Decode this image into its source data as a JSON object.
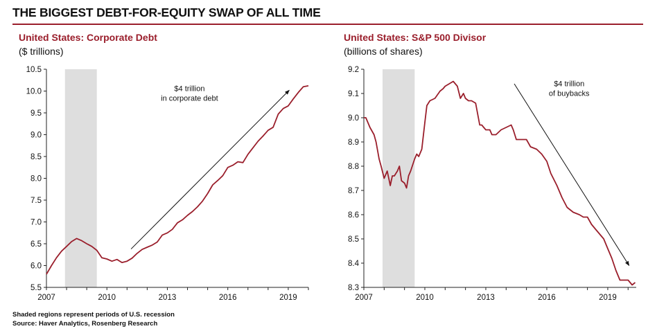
{
  "header": {
    "title": "THE BIGGEST DEBT-FOR-EQUITY SWAP OF ALL TIME"
  },
  "colors": {
    "accent": "#9a1e2b",
    "recession_shade": "#dedede",
    "line": "#9a1e2b",
    "arrow": "#111111"
  },
  "footnotes": {
    "note": "Shaded regions represent periods of U.S. recession",
    "source": "Source: Haver Analytics, Rosenberg Research"
  },
  "chart_data": [
    {
      "type": "line",
      "title": "United States: Corporate Debt",
      "subtitle": "($ trillions)",
      "xlim": [
        2007,
        2020
      ],
      "ylim": [
        5.5,
        10.5
      ],
      "xticks": [
        "2007",
        "2010",
        "2013",
        "2016",
        "2019"
      ],
      "yticks": [
        "5.5",
        "6.0",
        "6.5",
        "7.0",
        "7.5",
        "8.0",
        "8.5",
        "9.0",
        "9.5",
        "10.0",
        "10.5"
      ],
      "grid": false,
      "recession_periods": [
        [
          2007.92,
          2009.5
        ]
      ],
      "series": [
        {
          "x": [
            2007.0,
            2007.25,
            2007.5,
            2007.75,
            2008.0,
            2008.25,
            2008.5,
            2008.75,
            2009.0,
            2009.25,
            2009.5,
            2009.75,
            2010.0,
            2010.25,
            2010.5,
            2010.75,
            2011.0,
            2011.25,
            2011.5,
            2011.75,
            2012.0,
            2012.25,
            2012.5,
            2012.75,
            2013.0,
            2013.25,
            2013.5,
            2013.75,
            2014.0,
            2014.25,
            2014.5,
            2014.75,
            2015.0,
            2015.25,
            2015.5,
            2015.75,
            2016.0,
            2016.25,
            2016.5,
            2016.75,
            2017.0,
            2017.25,
            2017.5,
            2017.75,
            2018.0,
            2018.25,
            2018.5,
            2018.75,
            2019.0,
            2019.25,
            2019.5,
            2019.75,
            2020.0
          ],
          "y": [
            5.8,
            6.0,
            6.18,
            6.33,
            6.44,
            6.55,
            6.62,
            6.57,
            6.5,
            6.44,
            6.35,
            6.18,
            6.15,
            6.1,
            6.14,
            6.07,
            6.1,
            6.17,
            6.28,
            6.37,
            6.42,
            6.47,
            6.54,
            6.7,
            6.75,
            6.83,
            6.98,
            7.05,
            7.15,
            7.24,
            7.35,
            7.48,
            7.65,
            7.85,
            7.95,
            8.06,
            8.25,
            8.3,
            8.38,
            8.36,
            8.55,
            8.7,
            8.85,
            8.97,
            9.1,
            9.17,
            9.47,
            9.6,
            9.66,
            9.82,
            9.97,
            10.1,
            10.12
          ]
        }
      ],
      "annotations": [
        {
          "text": "$4 trillion",
          "x": 2014.1,
          "y": 10.0
        },
        {
          "text": "in corporate debt",
          "x": 2014.1,
          "y": 9.78
        }
      ],
      "arrow": {
        "from": [
          2011.2,
          6.38
        ],
        "to": [
          2019.05,
          10.02
        ]
      }
    },
    {
      "type": "line",
      "title": "United States: S&P 500 Divisor",
      "subtitle": "(billions of shares)",
      "xlim": [
        2007,
        2020.4
      ],
      "ylim": [
        8.3,
        9.2
      ],
      "xticks": [
        "2007",
        "2010",
        "2013",
        "2016",
        "2019"
      ],
      "yticks": [
        "8.3",
        "8.4",
        "8.5",
        "8.6",
        "8.7",
        "8.8",
        "8.9",
        "9.0",
        "9.1",
        "9.2"
      ],
      "grid": false,
      "recession_periods": [
        [
          2007.92,
          2009.5
        ]
      ],
      "series": [
        {
          "x": [
            2007.0,
            2007.1,
            2007.3,
            2007.5,
            2007.6,
            2007.75,
            2007.85,
            2008.0,
            2008.15,
            2008.25,
            2008.3,
            2008.4,
            2008.5,
            2008.65,
            2008.75,
            2008.85,
            2009.0,
            2009.1,
            2009.2,
            2009.3,
            2009.5,
            2009.6,
            2009.7,
            2009.85,
            2010.0,
            2010.1,
            2010.25,
            2010.5,
            2010.75,
            2010.9,
            2011.0,
            2011.2,
            2011.4,
            2011.6,
            2011.75,
            2011.9,
            2012.0,
            2012.15,
            2012.3,
            2012.5,
            2012.7,
            2012.8,
            2012.9,
            2013.0,
            2013.2,
            2013.3,
            2013.5,
            2013.75,
            2014.0,
            2014.25,
            2014.35,
            2014.5,
            2014.75,
            2015.0,
            2015.2,
            2015.5,
            2015.75,
            2016.0,
            2016.2,
            2016.5,
            2016.75,
            2017.0,
            2017.3,
            2017.6,
            2017.8,
            2018.0,
            2018.2,
            2018.4,
            2018.6,
            2018.8,
            2019.0,
            2019.2,
            2019.4,
            2019.6,
            2019.8,
            2020.0,
            2020.2,
            2020.35
          ],
          "y": [
            9.0,
            9.0,
            8.96,
            8.93,
            8.9,
            8.83,
            8.8,
            8.75,
            8.78,
            8.74,
            8.72,
            8.76,
            8.76,
            8.78,
            8.8,
            8.74,
            8.73,
            8.71,
            8.76,
            8.78,
            8.83,
            8.85,
            8.84,
            8.87,
            8.98,
            9.05,
            9.07,
            9.08,
            9.11,
            9.12,
            9.13,
            9.14,
            9.15,
            9.13,
            9.08,
            9.1,
            9.08,
            9.07,
            9.07,
            9.06,
            8.97,
            8.97,
            8.96,
            8.95,
            8.95,
            8.93,
            8.93,
            8.95,
            8.96,
            8.97,
            8.95,
            8.91,
            8.91,
            8.91,
            8.88,
            8.87,
            8.85,
            8.82,
            8.77,
            8.72,
            8.67,
            8.63,
            8.61,
            8.6,
            8.59,
            8.59,
            8.56,
            8.54,
            8.52,
            8.5,
            8.46,
            8.42,
            8.37,
            8.33,
            8.33,
            8.33,
            8.31,
            8.32
          ]
        }
      ],
      "annotations": [
        {
          "text": "$4 trillion",
          "x": 2017.1,
          "y": 9.13
        },
        {
          "text": "of buybacks",
          "x": 2017.1,
          "y": 9.09
        }
      ],
      "arrow": {
        "from": [
          2014.4,
          9.14
        ],
        "to": [
          2020.05,
          8.39
        ]
      }
    }
  ]
}
